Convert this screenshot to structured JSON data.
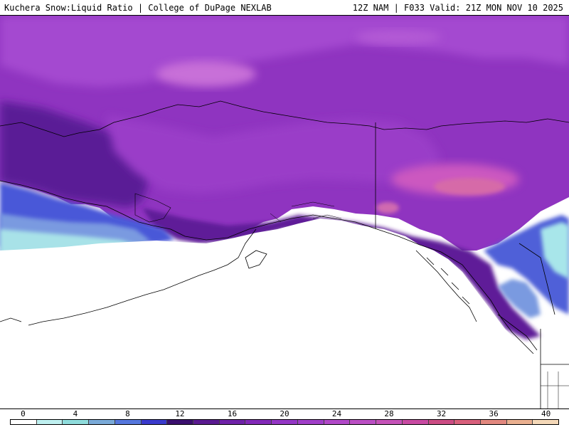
{
  "header": {
    "title_left": "Kuchera Snow:Liquid Ratio | College of DuPage NEXLAB",
    "title_right": "12Z NAM | F033 Valid: 21Z MON NOV 10 2025"
  },
  "legend": {
    "tick_labels": [
      "0",
      "4",
      "8",
      "12",
      "16",
      "20",
      "24",
      "28",
      "32",
      "36",
      "40"
    ],
    "range": [
      0,
      42
    ],
    "step": 2,
    "colors": [
      "#ffffff",
      "#bff0f0",
      "#8fdcdc",
      "#7aaad8",
      "#5577dd",
      "#3a3acc",
      "#3a0f6e",
      "#5a1a90",
      "#6f22a8",
      "#8229b8",
      "#9436c5",
      "#a03ec8",
      "#b148c8",
      "#bb4fc4",
      "#c552b8",
      "#c84aa2",
      "#cc4c84",
      "#d8607c",
      "#e2887f",
      "#eab090",
      "#f4d8b8"
    ]
  },
  "map": {
    "region": "Alaska / Gulf of Alaska / NW Canada",
    "land_color": "#8a3ab0",
    "ocean_color": "#ffffff",
    "outline_color": "#000000"
  }
}
